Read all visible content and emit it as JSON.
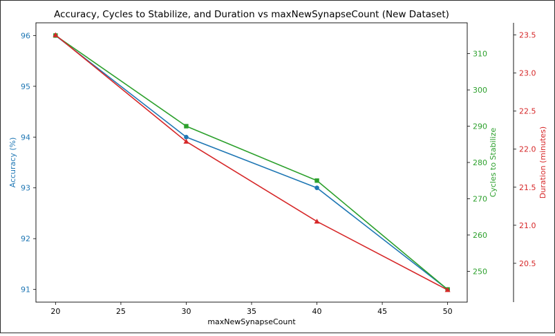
{
  "chart_data": {
    "type": "line",
    "title": "Accuracy, Cycles to Stabilize, and Duration vs maxNewSynapseCount (New Dataset)",
    "xlabel": "maxNewSynapseCount",
    "x": [
      20,
      30,
      40,
      50
    ],
    "xlim": [
      18.5,
      51.5
    ],
    "xticks": [
      20,
      25,
      30,
      35,
      40,
      45,
      50
    ],
    "series": [
      {
        "name": "Accuracy (%)",
        "axis": "left",
        "color": "#1f77b4",
        "marker": "circle",
        "values": [
          96,
          94,
          93,
          91
        ],
        "ylim": [
          90.75,
          96.25
        ],
        "yticks": [
          91,
          92,
          93,
          94,
          95,
          96
        ]
      },
      {
        "name": "Cycles to Stabilize",
        "axis": "right",
        "color": "#2ca02c",
        "marker": "square",
        "values": [
          315,
          290,
          275,
          245
        ],
        "ylim": [
          241.5,
          318.5
        ],
        "yticks": [
          250,
          260,
          270,
          280,
          290,
          300,
          310
        ]
      },
      {
        "name": "Duration (minutes)",
        "axis": "right-outer",
        "color": "#d62728",
        "marker": "triangle",
        "values": [
          23.5,
          22.1,
          21.05,
          20.15
        ],
        "ylim": [
          19.99,
          23.66
        ],
        "yticks": [
          "20.5",
          "21.0",
          "21.5",
          "22.0",
          "22.5",
          "23.0",
          "23.5"
        ]
      }
    ],
    "grid": false
  }
}
